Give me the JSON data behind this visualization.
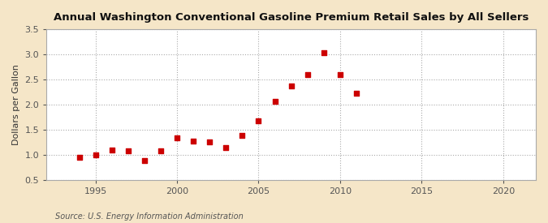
{
  "title": "Annual Washington Conventional Gasoline Premium Retail Sales by All Sellers",
  "ylabel": "Dollars per Gallon",
  "source": "Source: U.S. Energy Information Administration",
  "figure_bg": "#f5e6c8",
  "plot_bg": "#ffffff",
  "marker_color": "#cc0000",
  "xlim": [
    1992,
    2022
  ],
  "ylim": [
    0.5,
    3.5
  ],
  "xticks": [
    1995,
    2000,
    2005,
    2010,
    2015,
    2020
  ],
  "yticks": [
    0.5,
    1.0,
    1.5,
    2.0,
    2.5,
    3.0,
    3.5
  ],
  "data": [
    [
      1994,
      0.94
    ],
    [
      1995,
      1.0
    ],
    [
      1996,
      1.1
    ],
    [
      1997,
      1.08
    ],
    [
      1998,
      0.89
    ],
    [
      1999,
      1.08
    ],
    [
      2000,
      1.33
    ],
    [
      2001,
      1.27
    ],
    [
      2002,
      1.25
    ],
    [
      2003,
      1.14
    ],
    [
      2004,
      1.38
    ],
    [
      2005,
      1.67
    ],
    [
      2006,
      2.06
    ],
    [
      2007,
      2.37
    ],
    [
      2008,
      2.6
    ],
    [
      2009,
      3.03
    ],
    [
      2010,
      2.6
    ],
    [
      2011,
      2.22
    ]
  ]
}
